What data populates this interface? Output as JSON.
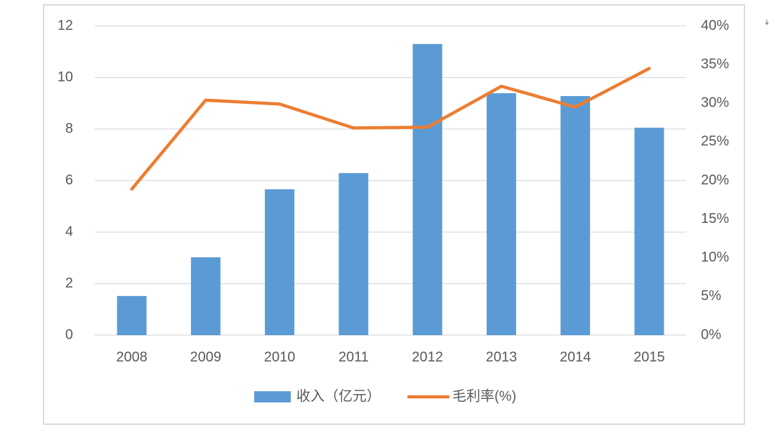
{
  "chart_data": {
    "type": "bar",
    "categories": [
      "2008",
      "2009",
      "2010",
      "2011",
      "2012",
      "2013",
      "2014",
      "2015"
    ],
    "series": [
      {
        "name": "收入（亿元）",
        "type": "bar",
        "color": "#5b9bd5",
        "values": [
          1.52,
          3.02,
          5.66,
          6.29,
          11.3,
          9.39,
          9.28,
          8.05
        ]
      },
      {
        "name": "毛利率(%)",
        "type": "line",
        "axis": "y2",
        "color": "#ed7d31",
        "values": [
          18.9,
          30.4,
          29.9,
          26.8,
          26.9,
          32.2,
          29.5,
          34.5
        ]
      }
    ],
    "ylim": [
      0,
      12
    ],
    "yticks": [
      0,
      2,
      4,
      6,
      8,
      10,
      12
    ],
    "y2lim": [
      0,
      40
    ],
    "y2ticks": [
      {
        "value": 0,
        "label": "0%"
      },
      {
        "value": 5,
        "label": "5%"
      },
      {
        "value": 10,
        "label": "10%"
      },
      {
        "value": 15,
        "label": "15%"
      },
      {
        "value": 20,
        "label": "20%"
      },
      {
        "value": 25,
        "label": "25%"
      },
      {
        "value": 30,
        "label": "30%"
      },
      {
        "value": 35,
        "label": "35%"
      },
      {
        "value": 40,
        "label": "40%"
      }
    ],
    "grid": true,
    "legend": "bottom"
  }
}
